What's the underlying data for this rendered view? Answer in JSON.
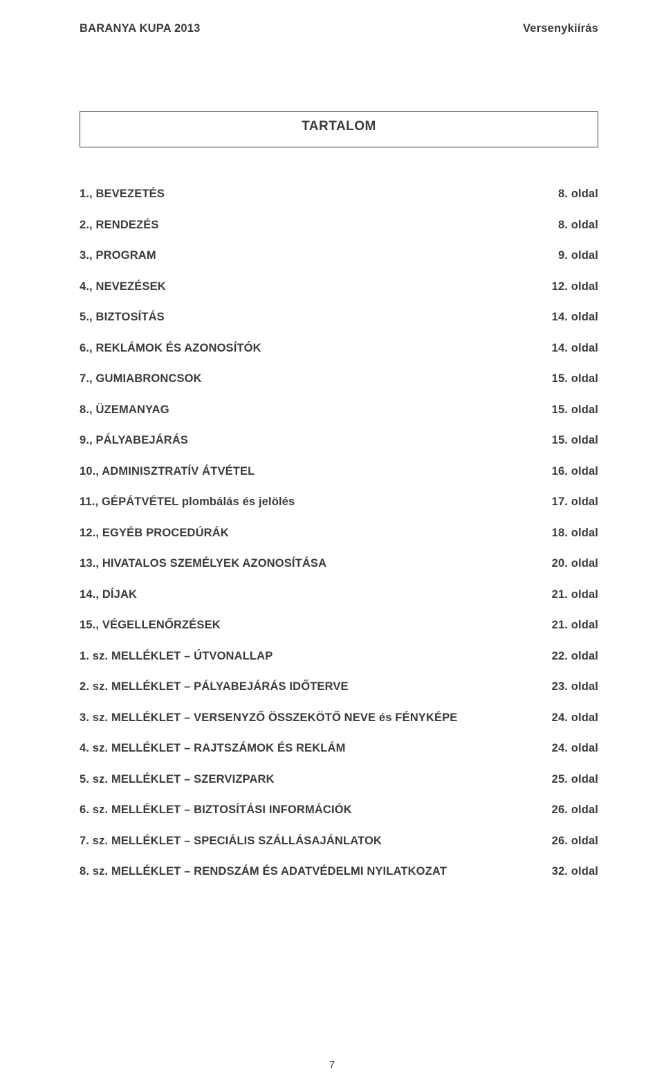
{
  "colors": {
    "text": "#3a3a3a",
    "background": "#ffffff",
    "border": "#3a3a3a"
  },
  "typography": {
    "font_family": "Arial",
    "header_fontsize_pt": 12,
    "title_fontsize_pt": 14,
    "row_fontsize_pt": 12,
    "footer_fontsize_pt": 11,
    "font_weight": "bold"
  },
  "header": {
    "left": "BARANYA KUPA 2013",
    "right": "Versenykiírás"
  },
  "title": "TARTALOM",
  "toc": [
    {
      "label": "1., BEVEZETÉS",
      "page": "8. oldal"
    },
    {
      "label": "2., RENDEZÉS",
      "page": "8. oldal"
    },
    {
      "label": "3., PROGRAM",
      "page": "9. oldal"
    },
    {
      "label": "4., NEVEZÉSEK",
      "page": "12. oldal"
    },
    {
      "label": "5., BIZTOSÍTÁS",
      "page": "14. oldal"
    },
    {
      "label": "6., REKLÁMOK ÉS AZONOSÍTÓK",
      "page": "14. oldal"
    },
    {
      "label": "7., GUMIABRONCSOK",
      "page": "15. oldal"
    },
    {
      "label": "8., ÜZEMANYAG",
      "page": "15. oldal"
    },
    {
      "label": "9., PÁLYABEJÁRÁS",
      "page": "15. oldal"
    },
    {
      "label": "10., ADMINISZTRATÍV ÁTVÉTEL",
      "page": "16. oldal"
    },
    {
      "label": "11., GÉPÁTVÉTEL plombálás és jelölés",
      "page": "17. oldal"
    },
    {
      "label": "12., EGYÉB PROCEDÚRÁK",
      "page": "18. oldal"
    },
    {
      "label": "13., HIVATALOS SZEMÉLYEK AZONOSÍTÁSA",
      "page": "20. oldal"
    },
    {
      "label": "14., DÍJAK",
      "page": "21. oldal"
    },
    {
      "label": "15., VÉGELLENŐRZÉSEK",
      "page": "21. oldal"
    },
    {
      "label": "1. sz. MELLÉKLET – ÚTVONALLAP",
      "page": "22. oldal"
    },
    {
      "label": "2. sz. MELLÉKLET – PÁLYABEJÁRÁS IDŐTERVE",
      "page": "23. oldal"
    },
    {
      "label": "3. sz. MELLÉKLET – VERSENYZŐ ÖSSZEKÖTŐ NEVE és FÉNYKÉPE",
      "page": "24. oldal"
    },
    {
      "label": "4. sz. MELLÉKLET – RAJTSZÁMOK ÉS REKLÁM",
      "page": "24. oldal"
    },
    {
      "label": "5. sz. MELLÉKLET – SZERVIZPARK",
      "page": "25. oldal"
    },
    {
      "label": "6. sz. MELLÉKLET – BIZTOSÍTÁSI INFORMÁCIÓK",
      "page": "26. oldal"
    },
    {
      "label": "7. sz. MELLÉKLET – SPECIÁLIS SZÁLLÁSAJÁNLATOK",
      "page": "26. oldal"
    },
    {
      "label": "8. sz. MELLÉKLET – RENDSZÁM ÉS ADATVÉDELMI NYILATKOZAT",
      "page": "32. oldal"
    }
  ],
  "footer": {
    "page_number": "7"
  }
}
